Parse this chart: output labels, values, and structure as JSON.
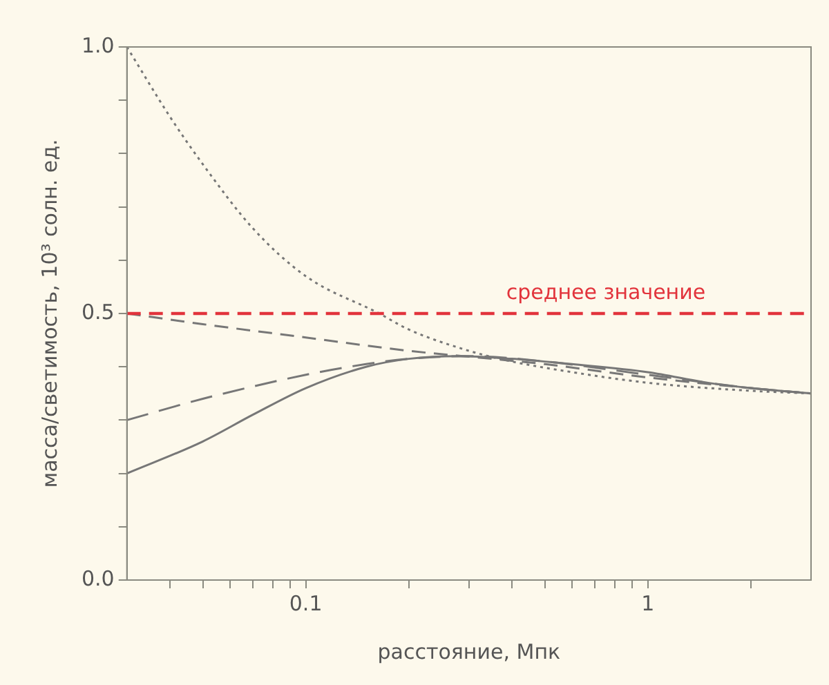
{
  "chart_data": {
    "type": "line",
    "xlabel": "расстояние, Мпк",
    "ylabel": "масса/светимость, 10³ солн. ед.",
    "log": "x",
    "xlim": [
      0.03,
      3
    ],
    "xticks": [
      {
        "value": 0.04,
        "label": null
      },
      {
        "value": 0.05,
        "label": null
      },
      {
        "value": 0.06,
        "label": null
      },
      {
        "value": 0.07,
        "label": null
      },
      {
        "value": 0.08,
        "label": null
      },
      {
        "value": 0.09,
        "label": null
      },
      0.1,
      {
        "value": 0.2,
        "label": null
      },
      {
        "value": 0.3,
        "label": null
      },
      {
        "value": 0.4,
        "label": null
      },
      {
        "value": 0.5,
        "label": null
      },
      {
        "value": 0.6,
        "label": null
      },
      {
        "value": 0.7,
        "label": null
      },
      {
        "value": 0.8,
        "label": null
      },
      {
        "value": 0.9,
        "label": null
      },
      1,
      {
        "value": 2,
        "label": null
      }
    ],
    "ylim": [
      0,
      1
    ],
    "yticks": [
      {
        "value": 0,
        "label": "0.0"
      },
      {
        "value": 0.1,
        "label": null
      },
      {
        "value": 0.2,
        "label": null
      },
      {
        "value": 0.3,
        "label": null
      },
      {
        "value": 0.4,
        "label": null
      },
      0.5,
      {
        "value": 0.6,
        "label": null
      },
      {
        "value": 0.7,
        "label": null
      },
      {
        "value": 0.8,
        "label": null
      },
      {
        "value": 0.9,
        "label": null
      },
      {
        "value": 1,
        "label": "1.0"
      }
    ],
    "grid": false,
    "legend": false,
    "marker": "none",
    "series": [
      {
        "color": "#777777",
        "line_style": "solid",
        "x": [
          0.03,
          0.05,
          0.07,
          0.1,
          0.15,
          0.2,
          0.28,
          0.4,
          0.6,
          1,
          1.5,
          2,
          3
        ],
        "values": [
          0.2,
          0.26,
          0.31,
          0.36,
          0.4,
          0.415,
          0.42,
          0.415,
          0.405,
          0.39,
          0.37,
          0.36,
          0.35
        ]
      },
      {
        "color": "#777777",
        "line_style": "longdash",
        "x": [
          0.03,
          0.05,
          0.1,
          0.15,
          0.2,
          0.3,
          0.5,
          1,
          2,
          3
        ],
        "values": [
          0.3,
          0.34,
          0.385,
          0.405,
          0.415,
          0.42,
          0.41,
          0.385,
          0.36,
          0.35
        ]
      },
      {
        "color": "#777777",
        "line_style": "dashed",
        "x": [
          0.03,
          0.05,
          0.1,
          0.2,
          0.35,
          0.5,
          1,
          2,
          3
        ],
        "values": [
          0.5,
          0.48,
          0.455,
          0.43,
          0.415,
          0.405,
          0.38,
          0.36,
          0.35
        ]
      },
      {
        "color": "#777777",
        "line_style": "dotted",
        "x": [
          0.03,
          0.04,
          0.05,
          0.07,
          0.1,
          0.164,
          0.2,
          0.3,
          0.4,
          0.6,
          1,
          2,
          3
        ],
        "values": [
          1.0,
          0.87,
          0.78,
          0.66,
          0.57,
          0.5,
          0.47,
          0.43,
          0.41,
          0.39,
          0.37,
          0.355,
          0.35
        ]
      }
    ],
    "ref_lines": [
      {
        "axis": "y",
        "value": 0.5,
        "label": "среднее значение",
        "color": "#e2343c",
        "line_style": "dashed"
      }
    ]
  }
}
